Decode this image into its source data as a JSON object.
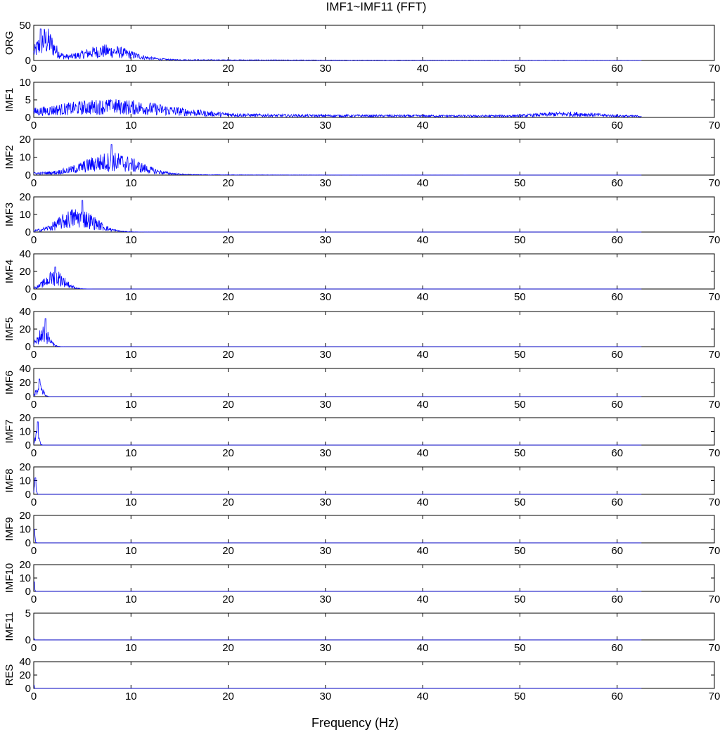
{
  "chart_data": {
    "type": "line",
    "title": "IMF1~IMF11 (FFT)",
    "xlabel": "Frequency (Hz)",
    "xlim": [
      0,
      70
    ],
    "xticks": [
      0,
      10,
      20,
      30,
      40,
      50,
      60,
      70
    ],
    "x_data_max": 62.5,
    "series_color": "#0000ff",
    "panels": [
      {
        "ylabel": "ORG",
        "ylim": [
          0,
          50
        ],
        "yticks": [
          0,
          50
        ],
        "profile": {
          "peak_freq": 0.7,
          "peak_amp": 45,
          "bands": [
            {
              "center": 1.2,
              "width": 1.2,
              "amp": 26
            },
            {
              "center": 7.5,
              "width": 3.5,
              "amp": 12
            }
          ],
          "tail_amp": 1.5,
          "tail_decay": 25,
          "cutoff": 62.5
        }
      },
      {
        "ylabel": "IMF1",
        "ylim": [
          0,
          10
        ],
        "yticks": [
          0,
          5,
          10
        ],
        "profile": {
          "peak_freq": 8,
          "peak_amp": 4.8,
          "bands": [
            {
              "center": 8,
              "width": 8,
              "amp": 2.4
            }
          ],
          "tail_amp": 0.7,
          "tail_decay": 80,
          "cutoff": 62.5,
          "bump": {
            "center": 55,
            "width": 4,
            "amp": 0.6
          }
        }
      },
      {
        "ylabel": "IMF2",
        "ylim": [
          0,
          20
        ],
        "yticks": [
          0,
          10,
          20
        ],
        "profile": {
          "peak_freq": 8,
          "peak_amp": 17,
          "bands": [
            {
              "center": 8,
              "width": 4,
              "amp": 7
            }
          ],
          "tail_amp": 0.8,
          "tail_decay": 10,
          "cutoff": 62.5
        }
      },
      {
        "ylabel": "IMF3",
        "ylim": [
          0,
          20
        ],
        "yticks": [
          0,
          10,
          20
        ],
        "profile": {
          "peak_freq": 5,
          "peak_amp": 18,
          "bands": [
            {
              "center": 4.5,
              "width": 2.6,
              "amp": 8
            }
          ],
          "tail_amp": 0.3,
          "tail_decay": 4,
          "cutoff": 62.5
        }
      },
      {
        "ylabel": "IMF4",
        "ylim": [
          0,
          40
        ],
        "yticks": [
          0,
          20,
          40
        ],
        "profile": {
          "peak_freq": 2.2,
          "peak_amp": 25,
          "bands": [
            {
              "center": 2.2,
              "width": 1.4,
              "amp": 13
            }
          ],
          "tail_amp": 0.2,
          "tail_decay": 2,
          "cutoff": 62.5
        }
      },
      {
        "ylabel": "IMF5",
        "ylim": [
          0,
          40
        ],
        "yticks": [
          0,
          20,
          40
        ],
        "profile": {
          "peak_freq": 1.2,
          "peak_amp": 32,
          "bands": [
            {
              "center": 1.0,
              "width": 0.8,
              "amp": 14
            }
          ],
          "tail_amp": 0.1,
          "tail_decay": 1.5,
          "cutoff": 62.5
        }
      },
      {
        "ylabel": "IMF6",
        "ylim": [
          0,
          40
        ],
        "yticks": [
          0,
          20,
          40
        ],
        "profile": {
          "peak_freq": 0.6,
          "peak_amp": 25,
          "bands": [
            {
              "center": 0.6,
              "width": 0.45,
              "amp": 13
            }
          ],
          "tail_amp": 0.1,
          "tail_decay": 1,
          "cutoff": 62.5
        }
      },
      {
        "ylabel": "IMF7",
        "ylim": [
          0,
          20
        ],
        "yticks": [
          0,
          10,
          20
        ],
        "profile": {
          "peak_freq": 0.4,
          "peak_amp": 17,
          "bands": [
            {
              "center": 0.35,
              "width": 0.25,
              "amp": 8
            }
          ],
          "tail_amp": 0.05,
          "tail_decay": 0.6,
          "cutoff": 62.5
        }
      },
      {
        "ylabel": "IMF8",
        "ylim": [
          0,
          20
        ],
        "yticks": [
          0,
          10,
          20
        ],
        "profile": {
          "peak_freq": 0.15,
          "peak_amp": 12,
          "bands": [
            {
              "center": 0.15,
              "width": 0.15,
              "amp": 5
            }
          ],
          "tail_amp": 0.05,
          "tail_decay": 0.5,
          "cutoff": 62.5
        }
      },
      {
        "ylabel": "IMF9",
        "ylim": [
          0,
          20
        ],
        "yticks": [
          0,
          10,
          20
        ],
        "profile": {
          "peak_freq": 0.05,
          "peak_amp": 10,
          "bands": [
            {
              "center": 0.05,
              "width": 0.12,
              "amp": 5
            }
          ],
          "tail_amp": 0.03,
          "tail_decay": 0.4,
          "cutoff": 62.5
        }
      },
      {
        "ylabel": "IMF10",
        "ylim": [
          0,
          20
        ],
        "yticks": [
          0,
          10,
          20
        ],
        "profile": {
          "peak_freq": 0.03,
          "peak_amp": 7,
          "bands": [
            {
              "center": 0.03,
              "width": 0.1,
              "amp": 3
            }
          ],
          "tail_amp": 0.02,
          "tail_decay": 0.3,
          "cutoff": 62.5
        }
      },
      {
        "ylabel": "IMF11",
        "ylim": [
          0,
          5
        ],
        "yticks": [
          0,
          5
        ],
        "profile": {
          "peak_freq": 0.0,
          "peak_amp": 0.3,
          "bands": [
            {
              "center": 0.0,
              "width": 0.05,
              "amp": 0.2
            }
          ],
          "tail_amp": 0.01,
          "tail_decay": 0.3,
          "cutoff": 62.5
        }
      },
      {
        "ylabel": "RES",
        "ylim": [
          0,
          40
        ],
        "yticks": [
          0,
          20,
          40
        ],
        "profile": {
          "peak_freq": 0.0,
          "peak_amp": 5,
          "bands": [
            {
              "center": 0.0,
              "width": 0.06,
              "amp": 3
            }
          ],
          "tail_amp": 0.03,
          "tail_decay": 0.3,
          "cutoff": 62.5
        }
      }
    ]
  }
}
